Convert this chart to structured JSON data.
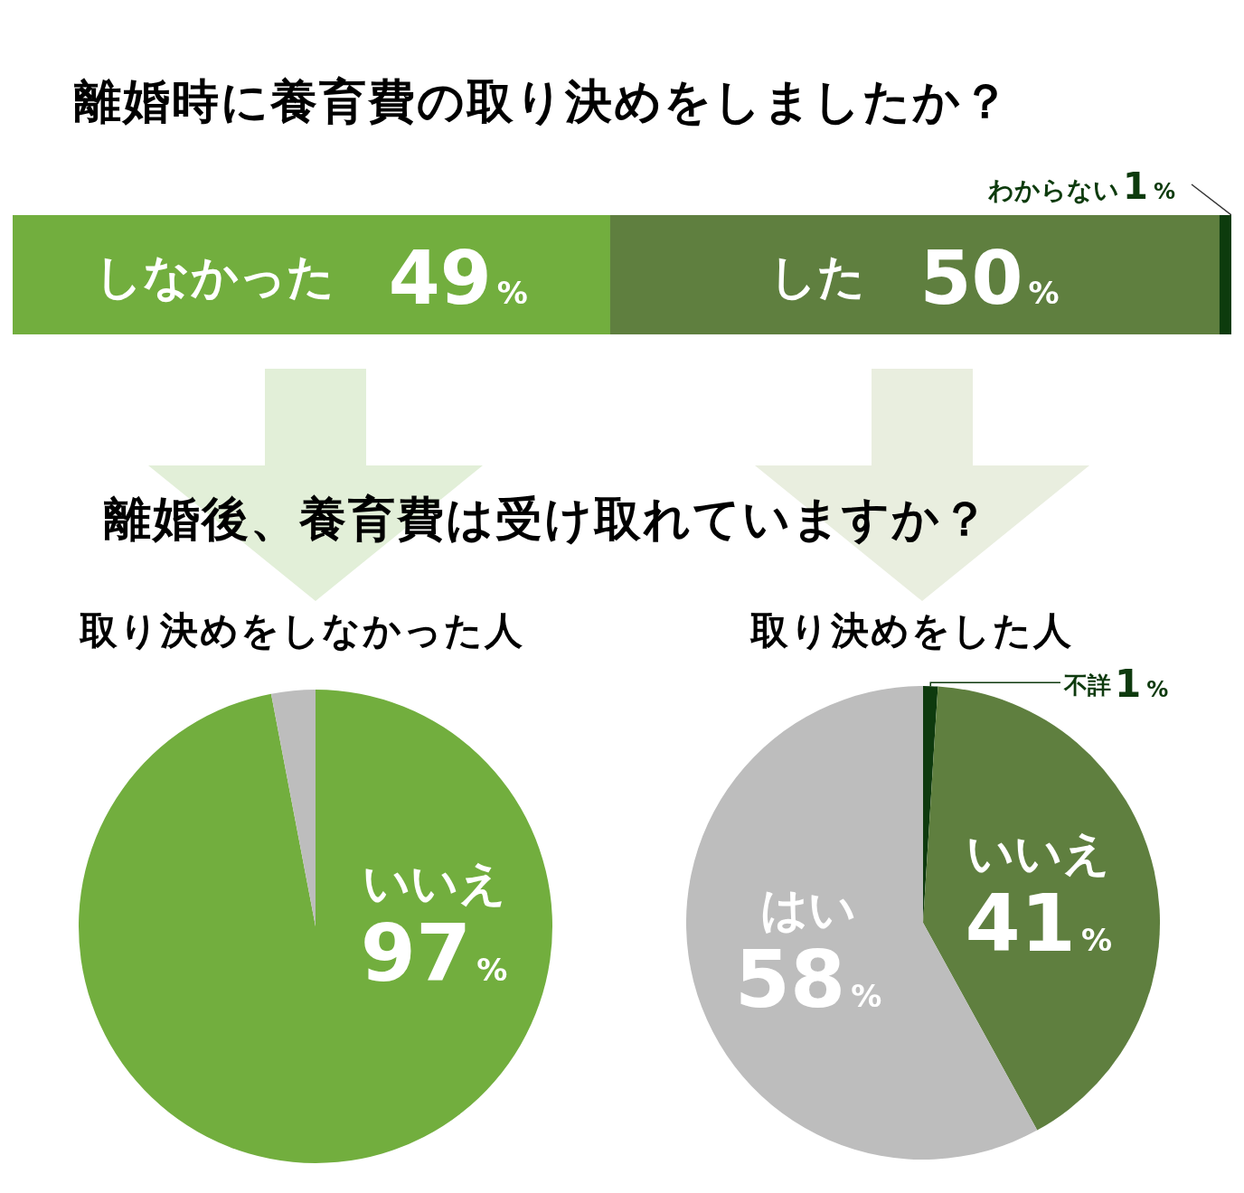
{
  "chart_data": [
    {
      "type": "bar",
      "title": "離婚時に養育費の取り決めをしましたか？",
      "orientation": "horizontal",
      "stacked": true,
      "categories": [
        null
      ],
      "xlim": [
        0,
        100
      ],
      "tick_labels": false,
      "series": [
        {
          "name": "しなかった",
          "color": "#72ae3e",
          "values": [
            49
          ],
          "value_labels": [
            "49%"
          ]
        },
        {
          "name": "した",
          "color": "#5f7f3f",
          "values": [
            50
          ],
          "value_labels": [
            "50%"
          ]
        },
        {
          "name": "わからない",
          "color": "#0d3b0d",
          "values": [
            1
          ],
          "value_labels": [
            "1%"
          ]
        }
      ]
    },
    {
      "type": "pie",
      "title": "離婚後、養育費は受け取れていますか？",
      "subtitle": "取り決めをしなかった人",
      "categories": [
        "いいえ",
        null
      ],
      "values": [
        97,
        3
      ],
      "colors": [
        "#72ae3e",
        "#bdbdbd"
      ],
      "value_labels": [
        "97%",
        null
      ]
    },
    {
      "type": "pie",
      "subtitle": "取り決めをした人",
      "categories": [
        "不詳",
        "いいえ",
        "はい"
      ],
      "values": [
        1,
        41,
        58
      ],
      "colors": [
        "#0e3a0e",
        "#5f7f3f",
        "#bdbdbd"
      ],
      "value_labels": [
        "1%",
        "41%",
        "58%"
      ]
    }
  ]
}
